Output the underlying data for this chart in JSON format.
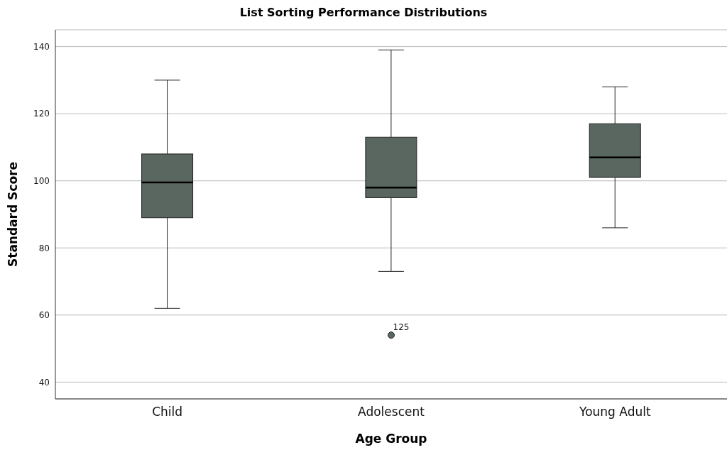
{
  "chart_data": {
    "type": "box",
    "title": "List Sorting Performance Distributions",
    "xlabel": "Age Group",
    "ylabel": "Standard Score",
    "categories": [
      "Child",
      "Adolescent",
      "Young Adult"
    ],
    "boxes": [
      {
        "low": 62,
        "q1": 89,
        "median": 99.5,
        "q3": 108,
        "high": 130
      },
      {
        "low": 73,
        "q1": 95,
        "median": 98,
        "q3": 113,
        "high": 139,
        "outliers": [
          54
        ]
      },
      {
        "low": 86,
        "q1": 101,
        "median": 107,
        "q3": 117,
        "high": 128
      }
    ],
    "color": "#5a6660",
    "ylim": [
      35,
      145
    ],
    "yticks": [
      40,
      60,
      80,
      100,
      120,
      140
    ],
    "grid": "y",
    "annotations": [
      "125"
    ]
  }
}
